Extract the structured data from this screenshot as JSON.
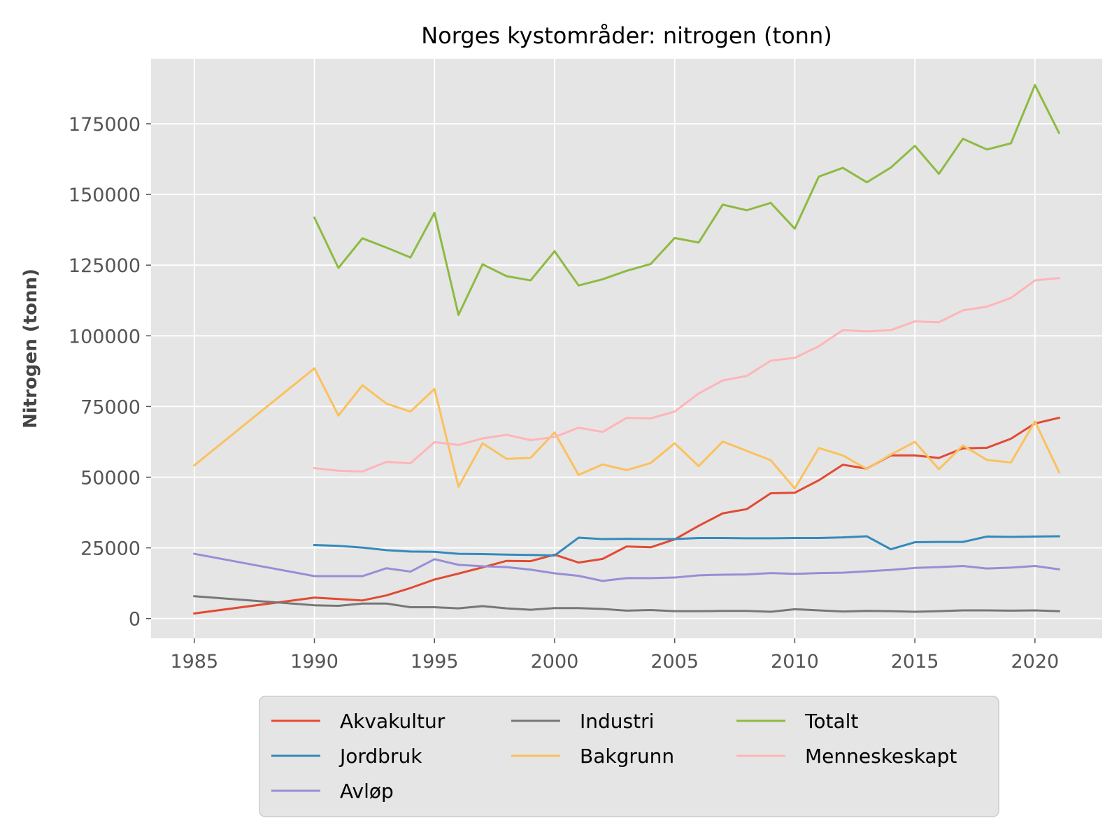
{
  "chart_data": {
    "type": "line",
    "title": "Norges kystområder: nitrogen (tonn)",
    "xlabel": "",
    "ylabel": "Nitrogen (tonn)",
    "xlim": [
      1983.2,
      2022.8
    ],
    "ylim": [
      -7000,
      198000
    ],
    "x_ticks": [
      1985,
      1990,
      1995,
      2000,
      2005,
      2010,
      2015,
      2020
    ],
    "y_ticks": [
      0,
      25000,
      50000,
      75000,
      100000,
      125000,
      150000,
      175000
    ],
    "grid": true,
    "legend_position": "bottom-center",
    "background_color": "#e5e5e5",
    "series": [
      {
        "name": "Akvakultur",
        "color": "#e24a33",
        "x": [
          1985,
          1990,
          1991,
          1992,
          1993,
          1994,
          1995,
          1996,
          1997,
          1998,
          1999,
          2000,
          2001,
          2002,
          2003,
          2004,
          2005,
          2006,
          2007,
          2008,
          2009,
          2010,
          2011,
          2012,
          2013,
          2014,
          2015,
          2016,
          2017,
          2018,
          2019,
          2020,
          2021
        ],
        "y": [
          1800,
          7400,
          6900,
          6400,
          8200,
          10800,
          13800,
          15900,
          18100,
          20400,
          20300,
          22600,
          19800,
          21100,
          25500,
          25200,
          28000,
          32800,
          37200,
          38700,
          44300,
          44500,
          48900,
          54400,
          53000,
          57700,
          57700,
          56800,
          60200,
          60400,
          63600,
          69000,
          71000
        ]
      },
      {
        "name": "Jordbruk",
        "color": "#348abd",
        "x": [
          1990,
          1991,
          1992,
          1993,
          1994,
          1995,
          1996,
          1997,
          1998,
          1999,
          2000,
          2001,
          2002,
          2003,
          2004,
          2005,
          2006,
          2007,
          2008,
          2009,
          2010,
          2011,
          2012,
          2013,
          2014,
          2015,
          2016,
          2017,
          2018,
          2019,
          2020,
          2021
        ],
        "y": [
          26000,
          25700,
          25100,
          24200,
          23700,
          23600,
          22900,
          22800,
          22600,
          22500,
          22300,
          28600,
          28100,
          28200,
          28100,
          28100,
          28500,
          28500,
          28400,
          28400,
          28500,
          28500,
          28700,
          29100,
          24500,
          27000,
          27100,
          27100,
          29000,
          28900,
          29000,
          29100
        ]
      },
      {
        "name": "Avløp",
        "color": "#988ed5",
        "x": [
          1985,
          1990,
          1991,
          1992,
          1993,
          1994,
          1995,
          1996,
          1997,
          1998,
          1999,
          2000,
          2001,
          2002,
          2003,
          2004,
          2005,
          2006,
          2007,
          2008,
          2009,
          2010,
          2011,
          2012,
          2013,
          2014,
          2015,
          2016,
          2017,
          2018,
          2019,
          2020,
          2021
        ],
        "y": [
          22900,
          15000,
          15000,
          15000,
          17800,
          16600,
          21000,
          19000,
          18500,
          18200,
          17300,
          16000,
          15100,
          13300,
          14300,
          14300,
          14500,
          15300,
          15500,
          15600,
          16100,
          15800,
          16100,
          16200,
          16700,
          17200,
          17900,
          18200,
          18600,
          17700,
          18000,
          18600,
          17400
        ]
      },
      {
        "name": "Industri",
        "color": "#777777",
        "x": [
          1985,
          1990,
          1991,
          1992,
          1993,
          1994,
          1995,
          1996,
          1997,
          1998,
          1999,
          2000,
          2001,
          2002,
          2003,
          2004,
          2005,
          2006,
          2007,
          2008,
          2009,
          2010,
          2011,
          2012,
          2013,
          2014,
          2015,
          2016,
          2017,
          2018,
          2019,
          2020,
          2021
        ],
        "y": [
          7900,
          4700,
          4500,
          5300,
          5300,
          4000,
          4000,
          3600,
          4400,
          3600,
          3100,
          3700,
          3700,
          3400,
          2800,
          3000,
          2600,
          2600,
          2700,
          2700,
          2400,
          3300,
          2900,
          2500,
          2700,
          2600,
          2400,
          2600,
          2900,
          2900,
          2800,
          2900,
          2600
        ]
      },
      {
        "name": "Bakgrunn",
        "color": "#fbc15e",
        "x": [
          1985,
          1990,
          1991,
          1992,
          1993,
          1994,
          1995,
          1996,
          1997,
          1998,
          1999,
          2000,
          2001,
          2002,
          2003,
          2004,
          2005,
          2006,
          2007,
          2008,
          2009,
          2010,
          2011,
          2012,
          2013,
          2014,
          2015,
          2016,
          2017,
          2018,
          2019,
          2020,
          2021
        ],
        "y": [
          54200,
          88500,
          71800,
          82500,
          76000,
          73200,
          81200,
          46600,
          62000,
          56500,
          56800,
          65800,
          50800,
          54500,
          52500,
          55000,
          62000,
          53900,
          62600,
          59300,
          56000,
          46000,
          60300,
          57700,
          52900,
          58000,
          62500,
          52800,
          61200,
          56100,
          55200,
          69700,
          51800
        ]
      },
      {
        "name": "Menneskeskapt",
        "color": "#ffb5b8",
        "x": [
          1990,
          1991,
          1992,
          1993,
          1994,
          1995,
          1996,
          1997,
          1998,
          1999,
          2000,
          2001,
          2002,
          2003,
          2004,
          2005,
          2006,
          2007,
          2008,
          2009,
          2010,
          2011,
          2012,
          2013,
          2014,
          2015,
          2016,
          2017,
          2018,
          2019,
          2020,
          2021
        ],
        "y": [
          53200,
          52300,
          52000,
          55400,
          54900,
          62400,
          61400,
          63700,
          65000,
          63100,
          64200,
          67500,
          66000,
          71000,
          70800,
          73200,
          79600,
          84200,
          85800,
          91200,
          92200,
          96300,
          102000,
          101600,
          102000,
          105100,
          104800,
          109000,
          110300,
          113400,
          119600,
          120400
        ]
      },
      {
        "name": "Totalt",
        "color": "#8eba42",
        "x": [
          1990,
          1991,
          1992,
          1993,
          1994,
          1995,
          1996,
          1997,
          1998,
          1999,
          2000,
          2001,
          2002,
          2003,
          2004,
          2005,
          2006,
          2007,
          2008,
          2009,
          2010,
          2011,
          2012,
          2013,
          2014,
          2015,
          2016,
          2017,
          2018,
          2019,
          2020,
          2021
        ],
        "y": [
          141800,
          124000,
          134500,
          131200,
          127700,
          143500,
          107400,
          125300,
          121100,
          119600,
          129900,
          117800,
          120000,
          123000,
          125400,
          134600,
          133000,
          146400,
          144400,
          147000,
          137900,
          156300,
          159400,
          154300,
          159500,
          167200,
          157300,
          169700,
          165900,
          168100,
          188700,
          171800
        ]
      }
    ],
    "legend_layout": [
      [
        "Akvakultur",
        "Jordbruk",
        "Avløp"
      ],
      [
        "Industri",
        "Bakgrunn"
      ],
      [
        "Totalt",
        "Menneskeskapt"
      ]
    ]
  }
}
